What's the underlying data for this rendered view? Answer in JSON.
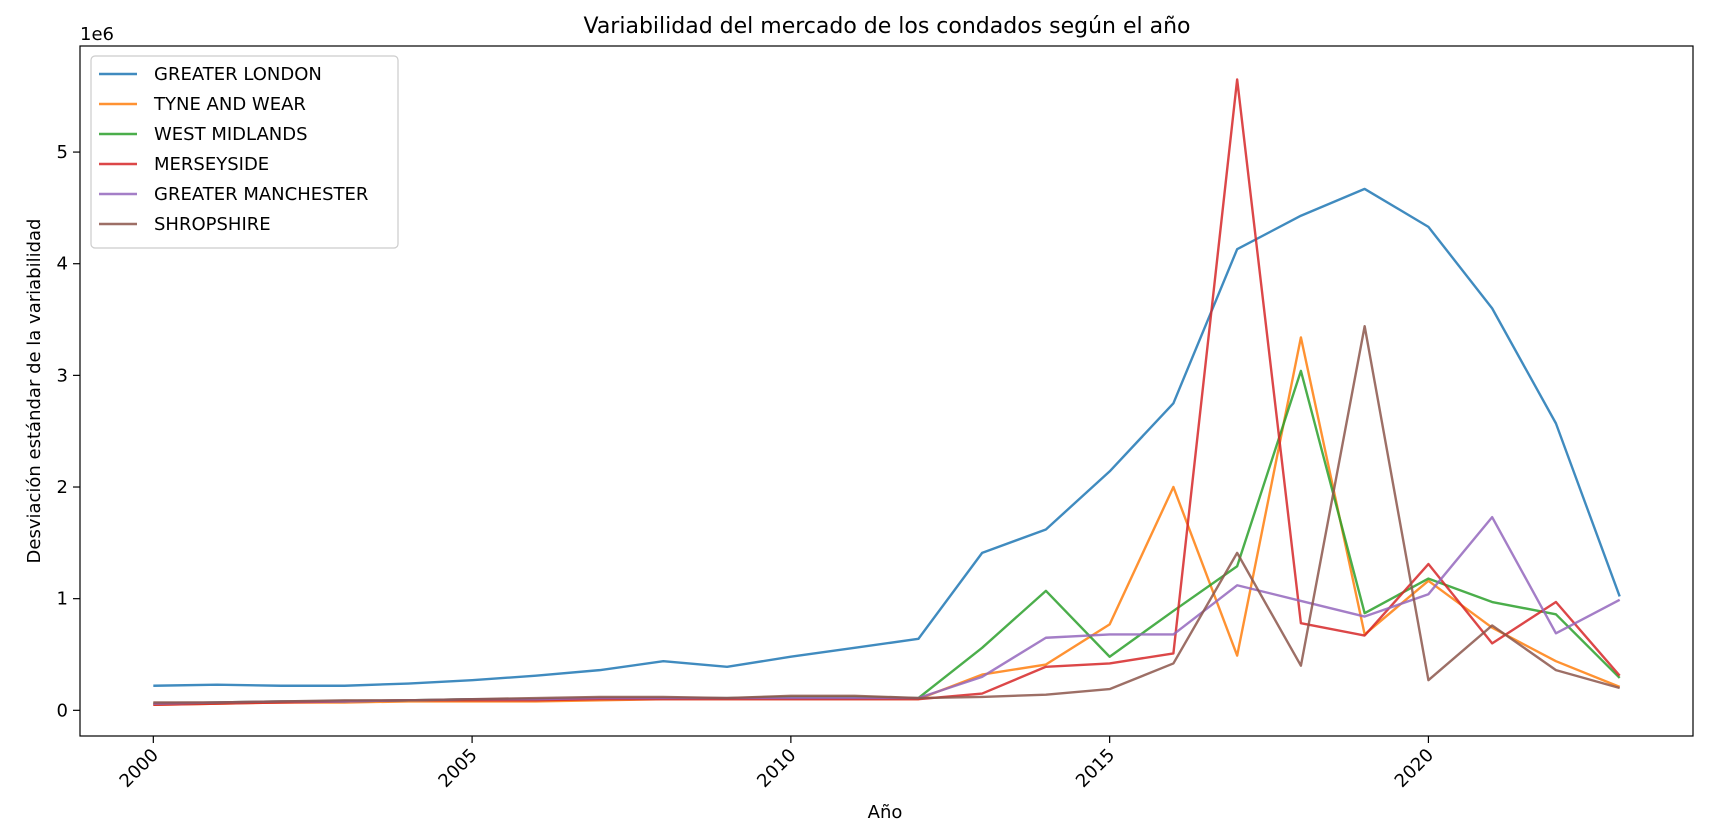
{
  "chart_data": {
    "type": "line",
    "title": "Variabilidad del mercado de los condados según el año",
    "xlabel": "Año",
    "ylabel": "Desviación estándar de la variabilidad",
    "y_offset_label": "1e6",
    "xlim": [
      1998.85,
      2024.15
    ],
    "ylim": [
      -0.23,
      5.95
    ],
    "x_ticks": [
      2000,
      2005,
      2010,
      2015,
      2020
    ],
    "x_tick_labels": [
      "2000",
      "2005",
      "2010",
      "2015",
      "2020"
    ],
    "y_ticks": [
      0,
      1,
      2,
      3,
      4,
      5
    ],
    "y_tick_labels": [
      "0",
      "1",
      "2",
      "3",
      "4",
      "5"
    ],
    "y_scale_note": "values in units of 1e6",
    "grid": false,
    "legend_position": "upper-left",
    "x": [
      2000,
      2001,
      2002,
      2003,
      2004,
      2005,
      2006,
      2007,
      2008,
      2009,
      2010,
      2011,
      2012,
      2013,
      2014,
      2015,
      2016,
      2017,
      2018,
      2019,
      2020,
      2021,
      2022,
      2023
    ],
    "series": [
      {
        "name": "GREATER LONDON",
        "color": "#1f77b4",
        "values": [
          0.22,
          0.23,
          0.22,
          0.22,
          0.24,
          0.27,
          0.31,
          0.36,
          0.44,
          0.39,
          0.48,
          0.56,
          0.64,
          1.41,
          1.62,
          2.14,
          2.75,
          4.13,
          4.43,
          4.67,
          4.33,
          3.6,
          2.57,
          1.02
        ]
      },
      {
        "name": "TYNE AND WEAR",
        "color": "#ff7f0e",
        "values": [
          0.05,
          0.06,
          0.07,
          0.07,
          0.08,
          0.08,
          0.08,
          0.09,
          0.1,
          0.1,
          0.1,
          0.1,
          0.1,
          0.32,
          0.41,
          0.77,
          2.0,
          0.49,
          3.34,
          0.68,
          1.16,
          0.74,
          0.44,
          0.21
        ]
      },
      {
        "name": "WEST MIDLANDS",
        "color": "#2ca02c",
        "values": [
          0.06,
          0.07,
          0.08,
          0.08,
          0.09,
          0.1,
          0.1,
          0.11,
          0.11,
          0.11,
          0.12,
          0.12,
          0.11,
          0.56,
          1.07,
          0.48,
          0.89,
          1.29,
          3.04,
          0.87,
          1.18,
          0.97,
          0.86,
          0.29
        ]
      },
      {
        "name": "MERSEYSIDE",
        "color": "#d62728",
        "values": [
          0.05,
          0.06,
          0.07,
          0.08,
          0.09,
          0.09,
          0.09,
          0.1,
          0.1,
          0.1,
          0.1,
          0.1,
          0.1,
          0.15,
          0.39,
          0.42,
          0.51,
          5.65,
          0.78,
          0.67,
          1.31,
          0.6,
          0.97,
          0.31
        ]
      },
      {
        "name": "GREATER MANCHESTER",
        "color": "#9467bd",
        "values": [
          0.06,
          0.07,
          0.08,
          0.08,
          0.09,
          0.1,
          0.1,
          0.11,
          0.11,
          0.11,
          0.11,
          0.11,
          0.11,
          0.3,
          0.65,
          0.68,
          0.68,
          1.12,
          0.98,
          0.84,
          1.04,
          1.73,
          0.69,
          0.99
        ]
      },
      {
        "name": "SHROPSHIRE",
        "color": "#8c564b",
        "values": [
          0.07,
          0.07,
          0.08,
          0.09,
          0.09,
          0.1,
          0.11,
          0.12,
          0.12,
          0.11,
          0.13,
          0.13,
          0.11,
          0.12,
          0.14,
          0.19,
          0.42,
          1.41,
          0.4,
          3.44,
          0.27,
          0.76,
          0.36,
          0.2
        ]
      }
    ]
  }
}
